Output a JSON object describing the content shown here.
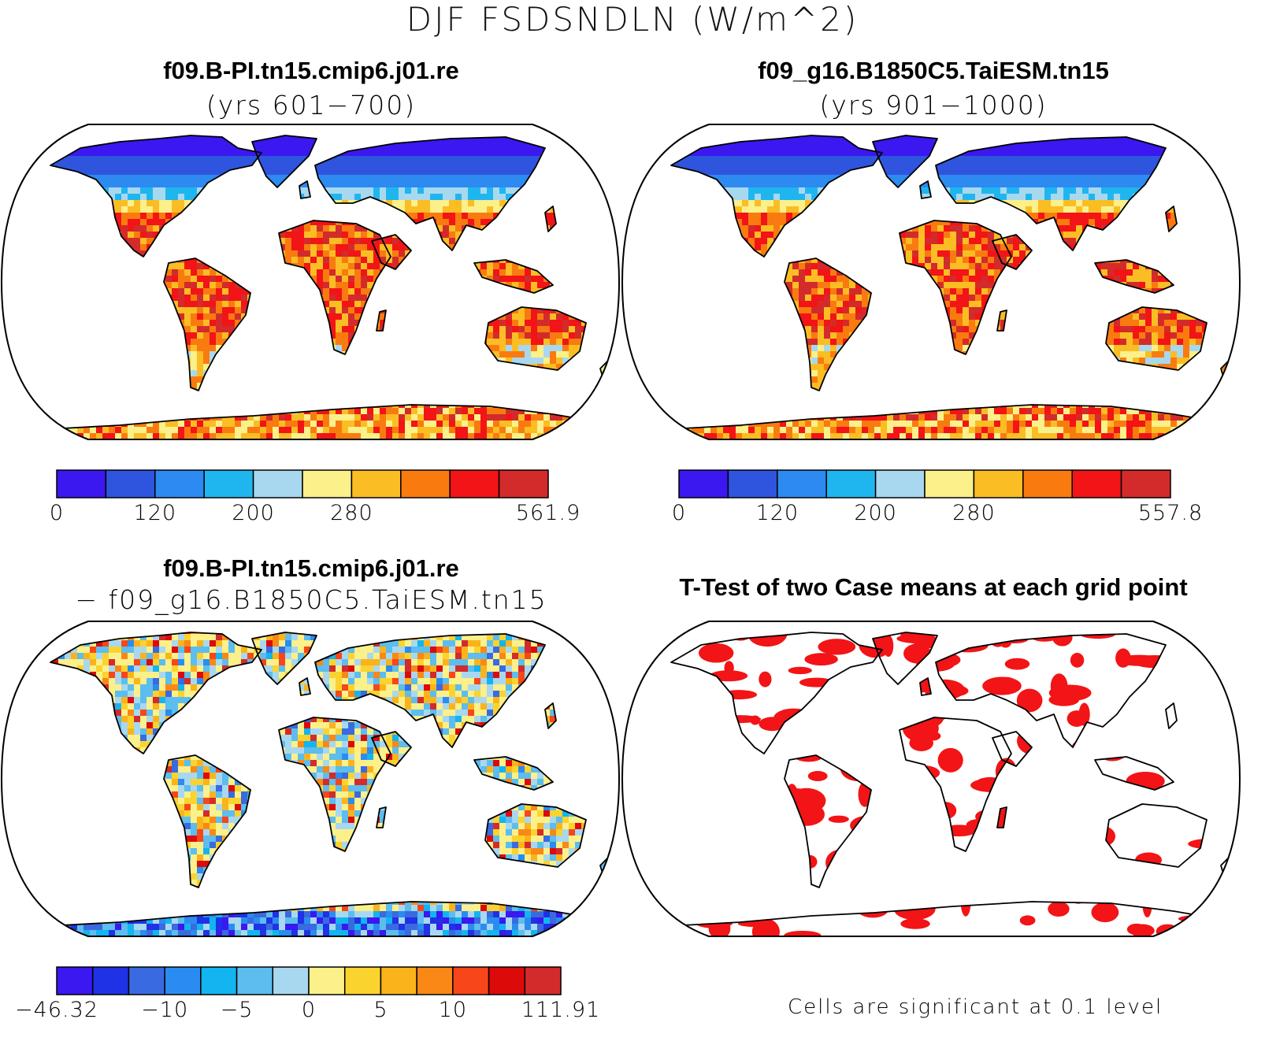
{
  "main_title": "DJF FSDSNDLN (W/m^2)",
  "panels": [
    {
      "title": "f09.B-PI.tn15.cmip6.j01.re",
      "subtitle": "(yrs 601−700)",
      "colorbar": {
        "colors": [
          "#3b17f0",
          "#2f55de",
          "#2c8af0",
          "#1fb6f0",
          "#a8d8ef",
          "#fbf08a",
          "#fbbd24",
          "#f97b10",
          "#f21416",
          "#d32b2b"
        ],
        "tick_labels": [
          "0",
          "120",
          "200",
          "280",
          "561.9"
        ]
      }
    },
    {
      "title": "f09_g16.B1850C5.TaiESM.tn15",
      "subtitle": "(yrs 901−1000)",
      "colorbar": {
        "colors": [
          "#3b17f0",
          "#2f55de",
          "#2c8af0",
          "#1fb6f0",
          "#a8d8ef",
          "#fbf08a",
          "#fbbd24",
          "#f97b10",
          "#f21416",
          "#d32b2b"
        ],
        "tick_labels": [
          "0",
          "120",
          "200",
          "280",
          "557.8"
        ]
      }
    },
    {
      "title": "f09.B-PI.tn15.cmip6.j01.re",
      "subtitle": "− f09_g16.B1850C5.TaiESM.tn15",
      "colorbar": {
        "colors": [
          "#3b17f0",
          "#1f32e6",
          "#3a6ae0",
          "#2a8cf0",
          "#12b5ef",
          "#5cbdee",
          "#a8d8ef",
          "#fbf08a",
          "#fbd32e",
          "#fbb31c",
          "#f98816",
          "#f7461a",
          "#dd0a0a",
          "#d32b2b"
        ],
        "tick_labels": [
          "−46.32",
          "−10",
          "−5",
          "0",
          "5",
          "10",
          "111.91"
        ]
      }
    },
    {
      "title": "T-Test of two Case means at each grid point",
      "note": "Cells are significant at 0.1 level",
      "significant_color": "#f21416"
    }
  ]
}
